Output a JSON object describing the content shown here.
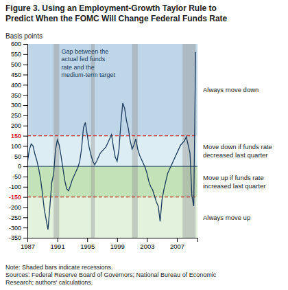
{
  "chart_data": {
    "type": "line",
    "title": "Figure 3. Using an Employment-Growth Taylor Rule to\nPredict When the FOMC Will Change Federal Funds Rate",
    "ylabel": "Basis points",
    "annotation": "Gap between the\nactual fed funds\nrate and the\nmedium-term target",
    "note": "Note: Shaded bars indicate recessions.\nSources: Federal Reserve Board of Governors; National Bureau of Economic\nResearch; authors' calculations.",
    "grid": false,
    "color": "#1A3A5C",
    "xlim": [
      1987.0,
      2009.75
    ],
    "xticks": [
      1987,
      1991,
      1995,
      1999,
      2003,
      2007
    ],
    "ylim": [
      -350,
      600
    ],
    "yticks": [
      -350,
      -300,
      -250,
      -200,
      -150,
      -100,
      -50,
      0,
      50,
      100,
      150,
      200,
      250,
      300,
      350,
      400,
      450,
      500,
      550,
      600
    ],
    "bands": [
      {
        "from": 150,
        "to": 600,
        "color": "#A8C8E0",
        "label": "Always move down"
      },
      {
        "from": 0,
        "to": 150,
        "color": "#D0E8F0",
        "label": "Move down if funds rate\ndecreased last quarter"
      },
      {
        "from": -150,
        "to": 0,
        "color": "#B0D8A0",
        "label": "Move up if funds rate\nincreased last quarter"
      },
      {
        "from": -350,
        "to": -150,
        "color": "#D8EED0",
        "label": "Always move up"
      }
    ],
    "reference_lines": [
      {
        "value": 0,
        "line_style": "solid"
      },
      {
        "value": 150,
        "line_style": "dashed",
        "color": "#CC2222"
      },
      {
        "value": -150,
        "line_style": "dashed",
        "color": "#CC2222"
      }
    ],
    "recessions": [
      [
        1990.5,
        1991.25
      ],
      [
        1995.5,
        1996.0
      ],
      [
        2001.0,
        2001.75
      ],
      [
        2007.75,
        2009.5
      ]
    ],
    "x": [
      1987.0,
      1987.25,
      1987.5,
      1987.75,
      1988.0,
      1988.25,
      1988.5,
      1988.75,
      1989.0,
      1989.25,
      1989.5,
      1989.75,
      1990.0,
      1990.25,
      1990.5,
      1990.75,
      1991.0,
      1991.25,
      1991.5,
      1991.75,
      1992.0,
      1992.25,
      1992.5,
      1992.75,
      1993.0,
      1993.25,
      1993.5,
      1993.75,
      1994.0,
      1994.25,
      1994.5,
      1994.75,
      1995.0,
      1995.25,
      1995.5,
      1995.75,
      1996.0,
      1996.25,
      1996.5,
      1996.75,
      1997.0,
      1997.25,
      1997.5,
      1997.75,
      1998.0,
      1998.25,
      1998.5,
      1998.75,
      1999.0,
      1999.25,
      1999.5,
      1999.75,
      2000.0,
      2000.25,
      2000.5,
      2000.75,
      2001.0,
      2001.25,
      2001.5,
      2001.75,
      2002.0,
      2002.25,
      2002.5,
      2002.75,
      2003.0,
      2003.25,
      2003.5,
      2003.75,
      2004.0,
      2004.25,
      2004.5,
      2004.75,
      2005.0,
      2005.25,
      2005.5,
      2005.75,
      2006.0,
      2006.25,
      2006.5,
      2006.75,
      2007.0,
      2007.25,
      2007.5,
      2007.75,
      2008.0,
      2008.25,
      2008.5,
      2008.75,
      2009.0,
      2009.25,
      2009.5
    ],
    "values": [
      20,
      80,
      110,
      100,
      60,
      30,
      -10,
      -60,
      -130,
      -210,
      -260,
      -310,
      -200,
      -80,
      -40,
      80,
      130,
      105,
      50,
      -10,
      -70,
      -110,
      -120,
      -95,
      -65,
      -45,
      -25,
      -5,
      25,
      90,
      190,
      215,
      155,
      95,
      55,
      25,
      8,
      25,
      45,
      65,
      75,
      85,
      95,
      115,
      135,
      155,
      95,
      45,
      25,
      85,
      210,
      310,
      285,
      225,
      185,
      125,
      85,
      105,
      135,
      85,
      55,
      35,
      15,
      -5,
      -35,
      -75,
      -100,
      -115,
      -145,
      -175,
      -195,
      -270,
      -165,
      -115,
      -75,
      -35,
      -15,
      5,
      25,
      45,
      65,
      85,
      105,
      115,
      125,
      145,
      105,
      65,
      -145,
      -195,
      560
    ]
  }
}
